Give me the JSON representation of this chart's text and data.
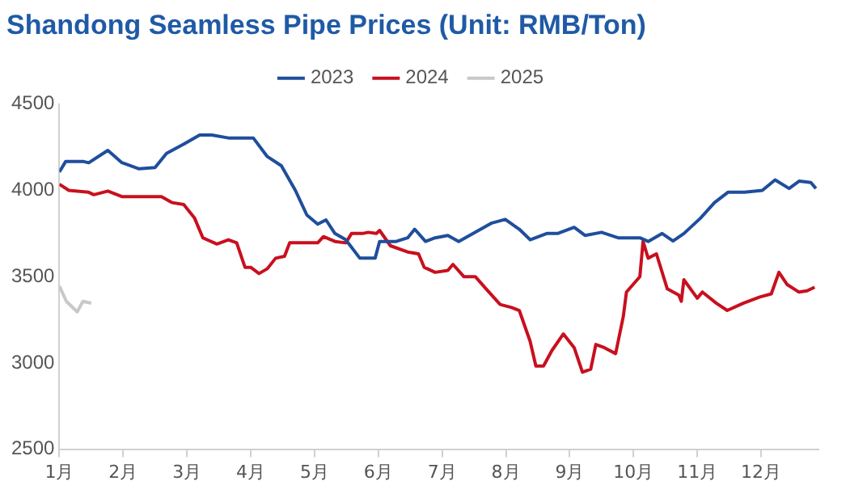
{
  "chart_data": {
    "type": "line",
    "title": "Shandong Seamless Pipe Prices (Unit: RMB/Ton)",
    "xlim": [
      1,
      12.9
    ],
    "xticks": [
      {
        "value": 1,
        "label": "1月"
      },
      {
        "value": 2,
        "label": "2月"
      },
      {
        "value": 3,
        "label": "3月"
      },
      {
        "value": 4,
        "label": "4月"
      },
      {
        "value": 5,
        "label": "5月"
      },
      {
        "value": 6,
        "label": "6月"
      },
      {
        "value": 7,
        "label": "7月"
      },
      {
        "value": 8,
        "label": "8月"
      },
      {
        "value": 9,
        "label": "9月"
      },
      {
        "value": 10,
        "label": "10月"
      },
      {
        "value": 11,
        "label": "11月"
      },
      {
        "value": 12,
        "label": "12月"
      }
    ],
    "ylim": [
      2500,
      4500
    ],
    "yticks": [
      2500,
      3000,
      3500,
      4000,
      4500
    ],
    "grid": false,
    "legend": "top",
    "series": [
      {
        "name": "2023",
        "color": "#1f4e9c",
        "x": [
          1.0,
          1.1,
          1.37,
          1.46,
          1.76,
          1.98,
          2.25,
          2.5,
          2.68,
          2.95,
          3.2,
          3.39,
          3.65,
          3.82,
          4.04,
          4.26,
          4.48,
          4.7,
          4.88,
          5.05,
          5.18,
          5.32,
          5.49,
          5.71,
          5.95,
          6.02,
          6.28,
          6.46,
          6.57,
          6.74,
          6.89,
          7.09,
          7.26,
          7.43,
          7.78,
          7.99,
          8.21,
          8.38,
          8.64,
          8.81,
          9.07,
          9.24,
          9.5,
          9.76,
          10.1,
          10.23,
          10.45,
          10.62,
          10.79,
          11.05,
          11.27,
          11.48,
          11.74,
          12.02,
          12.22,
          12.44,
          12.6,
          12.78,
          12.86
        ],
        "values": [
          4107,
          4168,
          4168,
          4160,
          4232,
          4161,
          4125,
          4132,
          4214,
          4268,
          4321,
          4321,
          4304,
          4304,
          4304,
          4196,
          4143,
          4000,
          3857,
          3804,
          3829,
          3750,
          3714,
          3607,
          3607,
          3704,
          3704,
          3725,
          3775,
          3704,
          3725,
          3739,
          3704,
          3739,
          3811,
          3832,
          3775,
          3714,
          3750,
          3750,
          3786,
          3739,
          3757,
          3725,
          3725,
          3704,
          3750,
          3707,
          3750,
          3839,
          3929,
          3989,
          3989,
          4000,
          4061,
          4011,
          4054,
          4046,
          4011
        ]
      },
      {
        "name": "2024",
        "color": "#c8101e",
        "x": [
          1.0,
          1.15,
          1.46,
          1.54,
          1.76,
          1.98,
          2.6,
          2.77,
          2.95,
          3.12,
          3.25,
          3.47,
          3.65,
          3.78,
          3.91,
          4.0,
          4.13,
          4.26,
          4.39,
          4.53,
          4.61,
          4.79,
          5.05,
          5.14,
          5.32,
          5.49,
          5.58,
          5.75,
          5.84,
          5.97,
          6.02,
          6.19,
          6.46,
          6.63,
          6.72,
          6.89,
          7.09,
          7.17,
          7.34,
          7.52,
          7.69,
          7.91,
          8.09,
          8.21,
          8.38,
          8.47,
          8.59,
          8.72,
          8.9,
          9.07,
          9.2,
          9.33,
          9.41,
          9.54,
          9.72,
          9.84,
          9.89,
          10.1,
          10.15,
          10.23,
          10.36,
          10.53,
          10.71,
          10.75,
          10.79,
          11.0,
          11.08,
          11.3,
          11.47,
          11.72,
          11.98,
          12.16,
          12.28,
          12.41,
          12.59,
          12.72,
          12.84
        ],
        "values": [
          4036,
          4000,
          3989,
          3975,
          3996,
          3964,
          3964,
          3929,
          3918,
          3839,
          3725,
          3689,
          3714,
          3696,
          3554,
          3554,
          3518,
          3546,
          3607,
          3618,
          3696,
          3696,
          3696,
          3732,
          3704,
          3696,
          3750,
          3750,
          3757,
          3750,
          3768,
          3679,
          3643,
          3632,
          3554,
          3525,
          3536,
          3571,
          3500,
          3500,
          3429,
          3339,
          3321,
          3304,
          3125,
          2982,
          2982,
          3071,
          3168,
          3089,
          2946,
          2964,
          3107,
          3089,
          3054,
          3268,
          3411,
          3500,
          3704,
          3607,
          3632,
          3429,
          3393,
          3357,
          3482,
          3375,
          3411,
          3346,
          3304,
          3346,
          3382,
          3400,
          3525,
          3454,
          3411,
          3418,
          3439
        ]
      },
      {
        "name": "2025",
        "color": "#c8c8c8",
        "x": [
          1.0,
          1.11,
          1.28,
          1.37,
          1.5
        ],
        "values": [
          3446,
          3357,
          3296,
          3357,
          3346
        ]
      }
    ]
  }
}
